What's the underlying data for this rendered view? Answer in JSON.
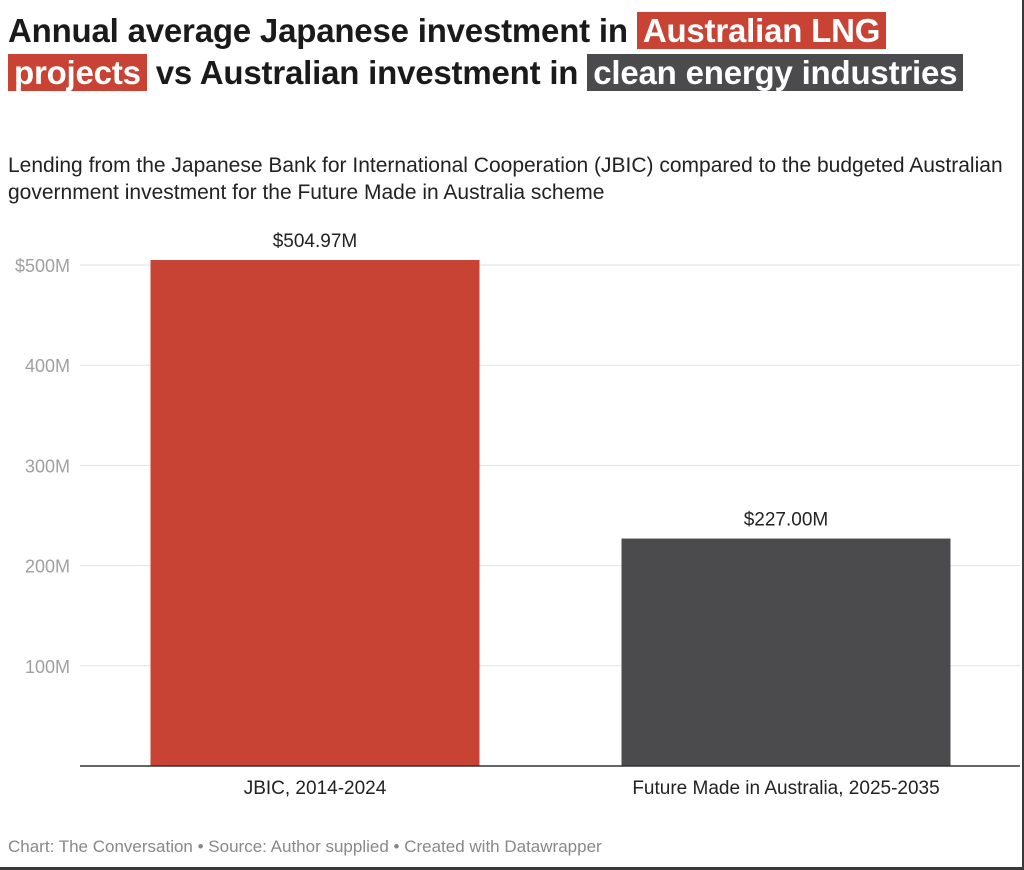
{
  "chart_data": {
    "type": "bar",
    "title_parts": [
      {
        "text": "Annual average Japanese investment in ",
        "highlight": null
      },
      {
        "text": "Australian LNG projects",
        "highlight": "#c84334"
      },
      {
        "text": " vs Australian investment in ",
        "highlight": null
      },
      {
        "text": "clean energy industries",
        "highlight": "#4b4b4d"
      }
    ],
    "subtitle": "Lending from the Japanese Bank for International Cooperation (JBIC) compared to the budgeted Australian government investment for the Future Made in Australia scheme",
    "categories": [
      "JBIC, 2014-2024",
      "Future Made in Australia, 2025-2035"
    ],
    "values": [
      504.97,
      227.0
    ],
    "value_labels": [
      "$504.97M",
      "$227.00M"
    ],
    "colors": [
      "#c84334",
      "#4b4b4d"
    ],
    "unit": "M",
    "ylim": [
      0,
      500
    ],
    "yticks": [
      100,
      200,
      300,
      400,
      500
    ],
    "ytick_labels": [
      "100M",
      "200M",
      "300M",
      "400M",
      "$500M"
    ],
    "grid": true,
    "xlabel": "",
    "ylabel": ""
  },
  "footer": {
    "text": "Chart: The Conversation • Source: Author supplied • Created with Datawrapper"
  }
}
